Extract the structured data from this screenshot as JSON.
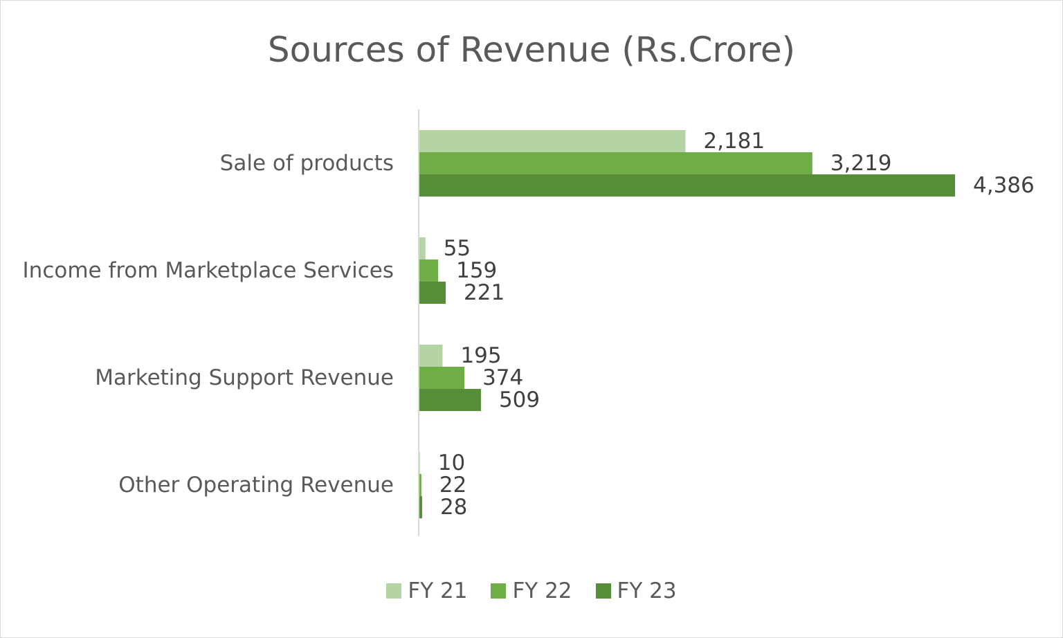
{
  "chart_data": {
    "type": "bar",
    "orientation": "horizontal",
    "title": "Sources of Revenue (Rs.Crore)",
    "categories": [
      "Sale of products",
      "Income from Marketplace Services",
      "Marketing Support Revenue",
      "Other Operating Revenue"
    ],
    "series": [
      {
        "name": "FY 21",
        "color": "#b5d4a6",
        "values": [
          2181,
          55,
          195,
          10
        ],
        "labels": [
          "2,181",
          "55",
          "195",
          "10"
        ]
      },
      {
        "name": "FY 22",
        "color": "#6fae47",
        "values": [
          3219,
          159,
          374,
          22
        ],
        "labels": [
          "3,219",
          "159",
          "374",
          "22"
        ]
      },
      {
        "name": "FY 23",
        "color": "#578d38",
        "values": [
          4386,
          221,
          509,
          28
        ],
        "labels": [
          "4,386",
          "221",
          "509",
          "28"
        ]
      }
    ],
    "xlim": [
      0,
      4386
    ],
    "grid": false,
    "axis_color": "#d9d9d9",
    "legend_position": "bottom"
  }
}
